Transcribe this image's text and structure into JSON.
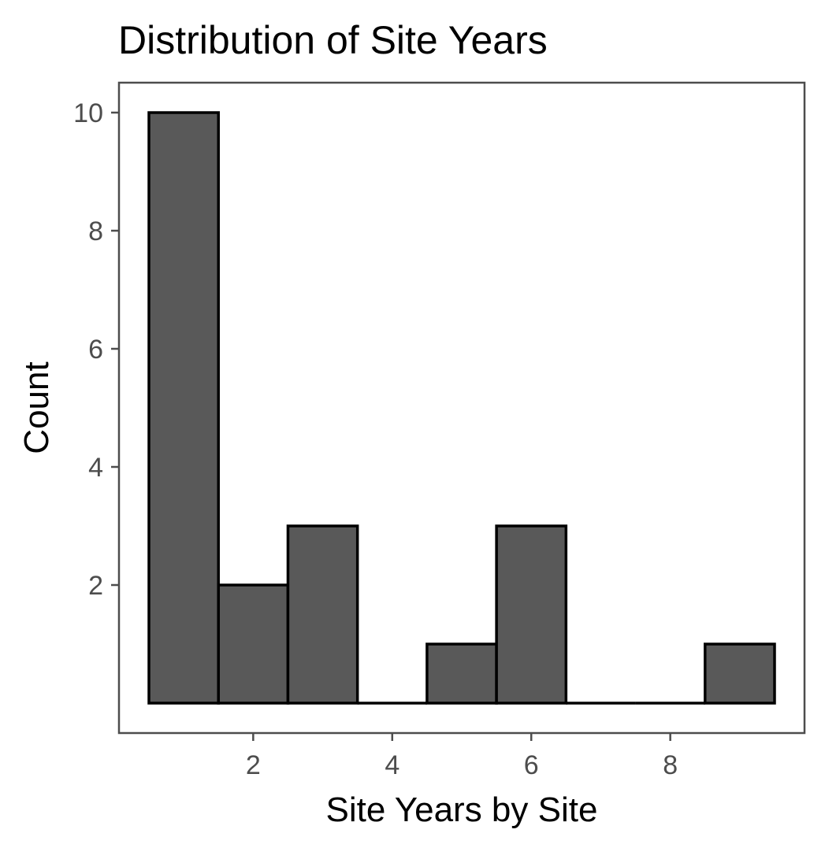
{
  "chart_data": {
    "type": "bar",
    "title": "Distribution of Site Years",
    "xlabel": "Site Years by Site",
    "ylabel": "Count",
    "bins": [
      {
        "x": 1,
        "count": 10
      },
      {
        "x": 2,
        "count": 2
      },
      {
        "x": 3,
        "count": 3
      },
      {
        "x": 4,
        "count": 0
      },
      {
        "x": 5,
        "count": 1
      },
      {
        "x": 6,
        "count": 3
      },
      {
        "x": 7,
        "count": 0
      },
      {
        "x": 8,
        "count": 0
      },
      {
        "x": 9,
        "count": 1
      }
    ],
    "bin_width": 1,
    "xlim": [
      0.5,
      9.5
    ],
    "ylim": [
      0,
      10
    ],
    "x_ticks": [
      2,
      4,
      6,
      8
    ],
    "y_ticks": [
      2,
      4,
      6,
      8,
      10
    ],
    "grid": false,
    "legend": "none",
    "bar_color": "#595959",
    "bar_edge_color": "#000000"
  }
}
